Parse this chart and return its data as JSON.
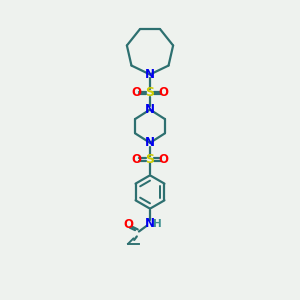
{
  "bg_color": "#eef2ee",
  "bond_color": "#2d7070",
  "N_color": "#0000ee",
  "S_color": "#cccc00",
  "O_color": "#ff0000",
  "H_color": "#3d9090",
  "line_width": 1.6,
  "fig_size": [
    3.0,
    3.0
  ],
  "dpi": 100,
  "xlim": [
    0,
    10
  ],
  "ylim": [
    0,
    17
  ]
}
